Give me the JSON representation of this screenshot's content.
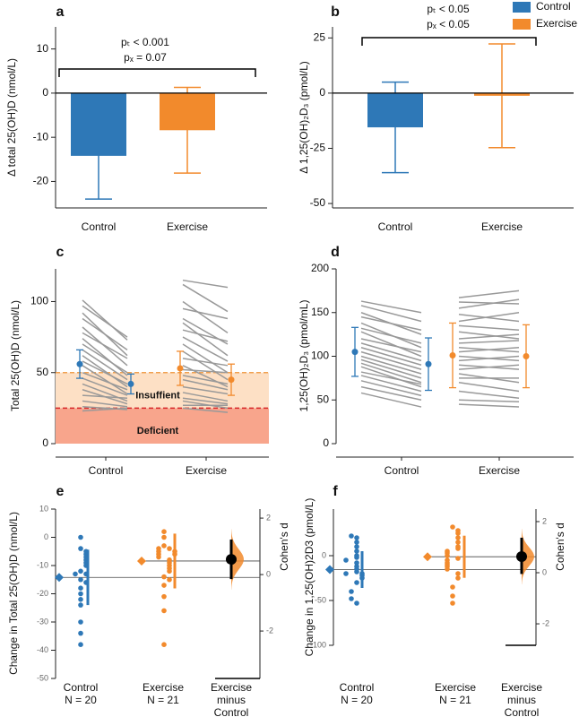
{
  "chart_data": [
    {
      "type": "bar",
      "panel": "a",
      "ylabel": "Δ total 25(OH)D (nmol/L)",
      "categories": [
        "Control",
        "Exercise"
      ],
      "values": [
        -14.2,
        -8.4
      ],
      "errors": [
        9.8,
        9.7
      ],
      "colors": [
        "#2e78b7",
        "#f28a2c"
      ],
      "ylim": [
        -26,
        15
      ],
      "yticks": [
        -20,
        -10,
        0,
        10
      ],
      "annotations": [
        "pₜ < 0.001",
        "pₓ = 0.07"
      ]
    },
    {
      "type": "bar",
      "panel": "b",
      "ylabel": "Δ 1,25(OH)₂D₃ (pmol/L)",
      "categories": [
        "Control",
        "Exercise"
      ],
      "values": [
        -15.5,
        -1.2
      ],
      "errors": [
        20.5,
        23.5
      ],
      "colors": [
        "#2e78b7",
        "#f28a2c"
      ],
      "ylim": [
        -52,
        30
      ],
      "yticks": [
        -50,
        -25,
        0,
        25
      ],
      "annotations": [
        "pₜ < 0.05",
        "pₓ < 0.05"
      ],
      "legend": "top right"
    },
    {
      "type": "paired",
      "panel": "c",
      "ylabel": "Total 25(OH)D (nmol/L)",
      "categories": [
        "Control",
        "Exercise"
      ],
      "ylim": [
        0,
        123
      ],
      "yticks": [
        0,
        50,
        100
      ],
      "bands": [
        {
          "label": "Insuffient",
          "from": 25,
          "to": 50,
          "color": "#fde0c5",
          "line_color": "#f0a050"
        },
        {
          "label": "Deficient",
          "from": 0,
          "to": 25,
          "color": "#f8a58c",
          "line_color": "#d62728"
        }
      ],
      "groups": [
        {
          "color": "#2e78b7",
          "mean": [
            56,
            42
          ],
          "sd": [
            10,
            7
          ],
          "pre": [
            101,
            97,
            92,
            88,
            82,
            78,
            74,
            70,
            66,
            62,
            58,
            55,
            50,
            46,
            42,
            38,
            34,
            30,
            26,
            23
          ],
          "post": [
            73,
            75,
            62,
            66,
            55,
            60,
            48,
            50,
            45,
            40,
            42,
            35,
            38,
            34,
            30,
            28,
            32,
            26,
            24,
            25
          ]
        },
        {
          "color": "#f28a2c",
          "mean": [
            53,
            45
          ],
          "sd": [
            12,
            11
          ],
          "pre": [
            115,
            112,
            100,
            95,
            88,
            85,
            80,
            75,
            70,
            65,
            60,
            55,
            52,
            48,
            45,
            40,
            36,
            32,
            30,
            27,
            25
          ],
          "post": [
            110,
            93,
            78,
            88,
            70,
            62,
            72,
            58,
            50,
            45,
            55,
            40,
            50,
            42,
            38,
            35,
            30,
            28,
            25,
            27,
            22
          ]
        }
      ]
    },
    {
      "type": "paired",
      "panel": "d",
      "ylabel": "1,25(OH)₂D₃ (pmol/mL)",
      "categories": [
        "Control",
        "Exercise"
      ],
      "ylim": [
        0,
        200
      ],
      "yticks": [
        0,
        50,
        100,
        150,
        200
      ],
      "bands": [],
      "groups": [
        {
          "color": "#2e78b7",
          "mean": [
            105,
            91
          ],
          "sd": [
            28,
            30
          ],
          "pre": [
            163,
            158,
            150,
            145,
            138,
            132,
            128,
            120,
            115,
            110,
            105,
            100,
            96,
            92,
            88,
            82,
            78,
            72,
            65,
            58
          ],
          "post": [
            150,
            140,
            125,
            130,
            110,
            115,
            100,
            105,
            95,
            90,
            85,
            80,
            75,
            70,
            65,
            68,
            60,
            55,
            50,
            42
          ]
        },
        {
          "color": "#f28a2c",
          "mean": [
            101,
            100
          ],
          "sd": [
            37,
            36
          ],
          "pre": [
            167,
            162,
            155,
            148,
            140,
            135,
            128,
            120,
            115,
            110,
            105,
            100,
            95,
            90,
            85,
            80,
            75,
            70,
            60,
            50,
            45
          ],
          "post": [
            175,
            160,
            165,
            140,
            150,
            130,
            120,
            125,
            118,
            105,
            110,
            95,
            100,
            85,
            90,
            70,
            75,
            60,
            52,
            48,
            42
          ]
        }
      ]
    },
    {
      "type": "estimation",
      "panel": "e",
      "ylabel": "Change in Total 25(OH)D (nmol/L)",
      "y2label": "Cohen's d",
      "categories": [
        [
          "Control",
          "N = 20"
        ],
        [
          "Exercise",
          "N = 21"
        ],
        [
          "Exercise",
          "minus",
          "Control"
        ]
      ],
      "ylim": [
        -50,
        10
      ],
      "yticks": [
        -50,
        -40,
        -30,
        -20,
        -10,
        0,
        10
      ],
      "y2lim": [
        -3.68,
        2.32
      ],
      "y2ticks": [
        -2,
        0,
        2
      ],
      "groups": [
        {
          "color": "#2e78b7",
          "mean": -14.2,
          "sd": 9.8,
          "values": [
            0,
            -4,
            -5,
            -6,
            -7,
            -8,
            -9,
            -10,
            -12,
            -13,
            -15,
            -16,
            -18,
            -20,
            -22,
            -24,
            -30,
            -34,
            -38,
            -13
          ]
        },
        {
          "color": "#f28a2c",
          "mean": -8.4,
          "sd": 9.7,
          "values": [
            2,
            0,
            -3,
            -4,
            -4,
            -5,
            -5,
            -6,
            -6,
            -7,
            -8,
            -9,
            -10,
            -11,
            -12,
            -14,
            -15,
            -17,
            -21,
            -26,
            -38
          ]
        }
      ],
      "effect": {
        "value": 0.54,
        "ci": [
          -0.16,
          1.24
        ],
        "color": "#f28a2c"
      }
    },
    {
      "type": "estimation",
      "panel": "f",
      "ylabel": "Change in 1,25(OH)2D3 (pmol/L)",
      "y2label": "Cohen's d",
      "categories": [
        [
          "Control",
          "N = 20"
        ],
        [
          "Exercise",
          "N = 21"
        ],
        [
          "Exercise",
          "minus",
          "Control"
        ]
      ],
      "ylim": [
        -100,
        52
      ],
      "yticks": [
        -100,
        -50,
        0
      ],
      "y2lim": [
        -2.84,
        2.49
      ],
      "y2ticks": [
        -2,
        0,
        2
      ],
      "groups": [
        {
          "color": "#2e78b7",
          "mean": -15.5,
          "sd": 20.5,
          "values": [
            22,
            20,
            15,
            10,
            5,
            0,
            -2,
            -5,
            -8,
            -12,
            -15,
            -18,
            -20,
            -20,
            -22,
            -25,
            -30,
            -40,
            -48,
            -53
          ]
        },
        {
          "color": "#f28a2c",
          "mean": -1.2,
          "sd": 23.5,
          "values": [
            32,
            28,
            25,
            20,
            15,
            10,
            8,
            5,
            3,
            0,
            -3,
            -5,
            -8,
            -10,
            -12,
            -15,
            -20,
            -25,
            -35,
            -45,
            -53
          ]
        }
      ],
      "effect": {
        "value": 0.63,
        "ci": [
          -0.05,
          1.37
        ],
        "color": "#f28a2c"
      }
    }
  ]
}
